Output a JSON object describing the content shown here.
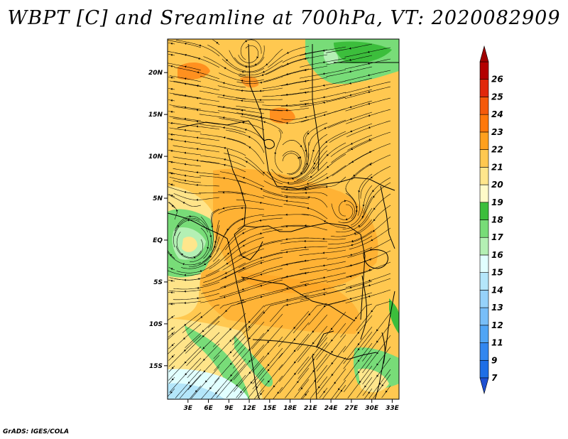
{
  "title": "WBPT [C] and Sreamline at 700hPa, VT: 2020082909",
  "credit": "GrADS: IGES/COLA",
  "map": {
    "variable": "Wet-bulb potential temperature",
    "units": "C",
    "level": "700hPa",
    "valid_time": "2020082909",
    "lat_range": [
      -19,
      24
    ],
    "lon_range": [
      0,
      34
    ],
    "lat_ticks": [
      {
        "label": "20N",
        "value": 20
      },
      {
        "label": "15N",
        "value": 15
      },
      {
        "label": "10N",
        "value": 10
      },
      {
        "label": "5N",
        "value": 5
      },
      {
        "label": "EQ",
        "value": 0
      },
      {
        "label": "5S",
        "value": -5
      },
      {
        "label": "10S",
        "value": -10
      },
      {
        "label": "15S",
        "value": -15
      }
    ],
    "lon_ticks": [
      {
        "label": "3E",
        "value": 3
      },
      {
        "label": "6E",
        "value": 6
      },
      {
        "label": "9E",
        "value": 9
      },
      {
        "label": "12E",
        "value": 12
      },
      {
        "label": "15E",
        "value": 15
      },
      {
        "label": "18E",
        "value": 18
      },
      {
        "label": "21E",
        "value": 21
      },
      {
        "label": "24E",
        "value": 24
      },
      {
        "label": "27E",
        "value": 27
      },
      {
        "label": "30E",
        "value": 30
      },
      {
        "label": "33E",
        "value": 33
      }
    ]
  },
  "colorbar": {
    "levels": [
      {
        "label": "7",
        "color": "#1e6ee6"
      },
      {
        "label": "9",
        "color": "#3287f0"
      },
      {
        "label": "11",
        "color": "#50a5f5"
      },
      {
        "label": "12",
        "color": "#78bef8"
      },
      {
        "label": "13",
        "color": "#96d2fa"
      },
      {
        "label": "14",
        "color": "#b4e6fa"
      },
      {
        "label": "15",
        "color": "#e1ffff"
      },
      {
        "label": "16",
        "color": "#b4f0b4"
      },
      {
        "label": "17",
        "color": "#78dc78"
      },
      {
        "label": "18",
        "color": "#3cbe3c"
      },
      {
        "label": "19",
        "color": "#fffac8"
      },
      {
        "label": "20",
        "color": "#ffe68c"
      },
      {
        "label": "21",
        "color": "#ffc850"
      },
      {
        "label": "22",
        "color": "#ffa01e"
      },
      {
        "label": "23",
        "color": "#ff780a"
      },
      {
        "label": "24",
        "color": "#f55a0a"
      },
      {
        "label": "25",
        "color": "#e1280a"
      },
      {
        "label": "26",
        "color": "#b40000"
      }
    ],
    "below_color": "#1e50d2",
    "above_color": "#a00000"
  }
}
